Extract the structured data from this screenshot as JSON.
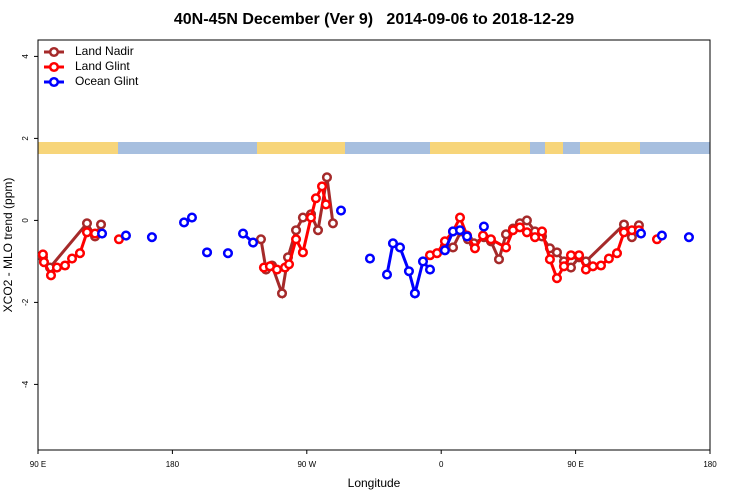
{
  "chart_data": {
    "type": "line",
    "title": "40N-45N December (Ver 9)   2014-09-06 to 2018-12-29",
    "x_label": "Longitude",
    "y_label": "XCO2 - MLO trend (ppm)",
    "xlim": [
      90,
      540
    ],
    "xticks": [
      {
        "value": 90,
        "label": "90 E"
      },
      {
        "value": 180,
        "label": "180"
      },
      {
        "value": 270,
        "label": "90 W"
      },
      {
        "value": 360,
        "label": "0"
      },
      {
        "value": 450,
        "label": "90 E"
      },
      {
        "value": 540,
        "label": "180"
      }
    ],
    "ylim": [
      -5.6,
      4.4
    ],
    "yticks": [
      -4,
      -2,
      0,
      2,
      4
    ],
    "legend": "top-left",
    "series": [
      {
        "name": "Land Nadir",
        "color": "#a52a2a",
        "x": [
          93.3,
          98,
          122.8,
          128.2,
          132.2,
          null,
          239.3,
          242.7,
          246.7,
          253.4,
          257.4,
          262.8,
          267.4,
          272.8,
          277.5,
          283.5,
          287.5,
          null,
          362.5,
          367.9,
          373.2,
          377.9,
          381.9,
          388.6,
          393.3,
          398.7,
          403.4,
          408.1,
          412.7,
          417.4,
          422.8,
          427.5,
          432.8,
          437.5,
          442.2,
          446.9,
          452.3,
          456.9,
          482.4,
          487.7,
          492.4
        ],
        "values": [
          -0.9,
          -1.15,
          -0.07,
          -0.39,
          -0.1,
          null,
          -0.46,
          -1.2,
          -1.1,
          -1.78,
          -0.9,
          -0.24,
          0.07,
          0.15,
          -0.24,
          1.05,
          -0.07,
          null,
          -0.63,
          -0.66,
          -0.27,
          -0.46,
          -0.56,
          -0.41,
          -0.51,
          -0.95,
          -0.34,
          -0.2,
          -0.07,
          0,
          -0.27,
          -0.39,
          -0.68,
          -0.78,
          -1.0,
          -1.15,
          -0.9,
          -1.0,
          -0.1,
          -0.41,
          -0.12
        ]
      },
      {
        "name": "Land Glint",
        "color": "#ff0000",
        "x": [
          93.3,
          94,
          98.7,
          102.7,
          108.1,
          112.8,
          118.1,
          122.8,
          128.2,
          null,
          144.2,
          null,
          241.3,
          245.3,
          250,
          255.4,
          258.1,
          262.8,
          267.4,
          272.8,
          276.1,
          280.2,
          282.8,
          null,
          352.5,
          357.2,
          362.5,
          367.9,
          372.6,
          377.3,
          382.6,
          388,
          393.3,
          403.4,
          408.1,
          412.7,
          417.4,
          422.8,
          427.5,
          432.8,
          437.5,
          442.2,
          446.9,
          452.3,
          456.9,
          461.6,
          467,
          472.3,
          477.7,
          482.4,
          487.7,
          492.4,
          null,
          504.5
        ],
        "values": [
          -0.83,
          -1.02,
          -1.34,
          -1.15,
          -1.1,
          -0.93,
          -0.8,
          -0.29,
          -0.32,
          null,
          -0.46,
          null,
          -1.15,
          -1.12,
          -1.2,
          -1.15,
          -1.07,
          -0.46,
          -0.78,
          0.07,
          0.54,
          0.83,
          0.39,
          null,
          -0.85,
          -0.8,
          -0.51,
          -0.27,
          0.07,
          -0.37,
          -0.68,
          -0.37,
          -0.46,
          -0.66,
          -0.24,
          -0.17,
          -0.29,
          -0.41,
          -0.27,
          -0.95,
          -1.41,
          -1.12,
          -0.85,
          -0.85,
          -1.2,
          -1.12,
          -1.1,
          -0.93,
          -0.8,
          -0.29,
          -0.24,
          -0.24,
          null,
          -0.46
        ]
      },
      {
        "name": "Ocean Glint",
        "color": "#0000ff",
        "x": [
          132.9,
          null,
          148.9,
          null,
          166.3,
          null,
          187.8,
          193.1,
          null,
          203.2,
          null,
          217.2,
          null,
          227.3,
          234,
          null,
          292.9,
          null,
          312.3,
          null,
          323.7,
          327.7,
          332.4,
          338.4,
          342.4,
          347.8,
          352.5,
          null,
          362.5,
          367.9,
          372.6,
          377.3,
          null,
          388.6,
          null,
          493.8,
          null,
          507.8,
          null,
          525.9
        ],
        "values": [
          -0.32,
          null,
          -0.37,
          null,
          -0.41,
          null,
          -0.05,
          0.07,
          null,
          -0.78,
          null,
          -0.8,
          null,
          -0.32,
          -0.54,
          null,
          0.24,
          null,
          -0.93,
          null,
          -1.32,
          -0.56,
          -0.66,
          -1.24,
          -1.78,
          -1.0,
          -1.2,
          null,
          -0.73,
          -0.27,
          -0.24,
          -0.39,
          null,
          -0.15,
          null,
          -0.32,
          null,
          -0.37,
          null,
          -0.41
        ]
      }
    ]
  }
}
